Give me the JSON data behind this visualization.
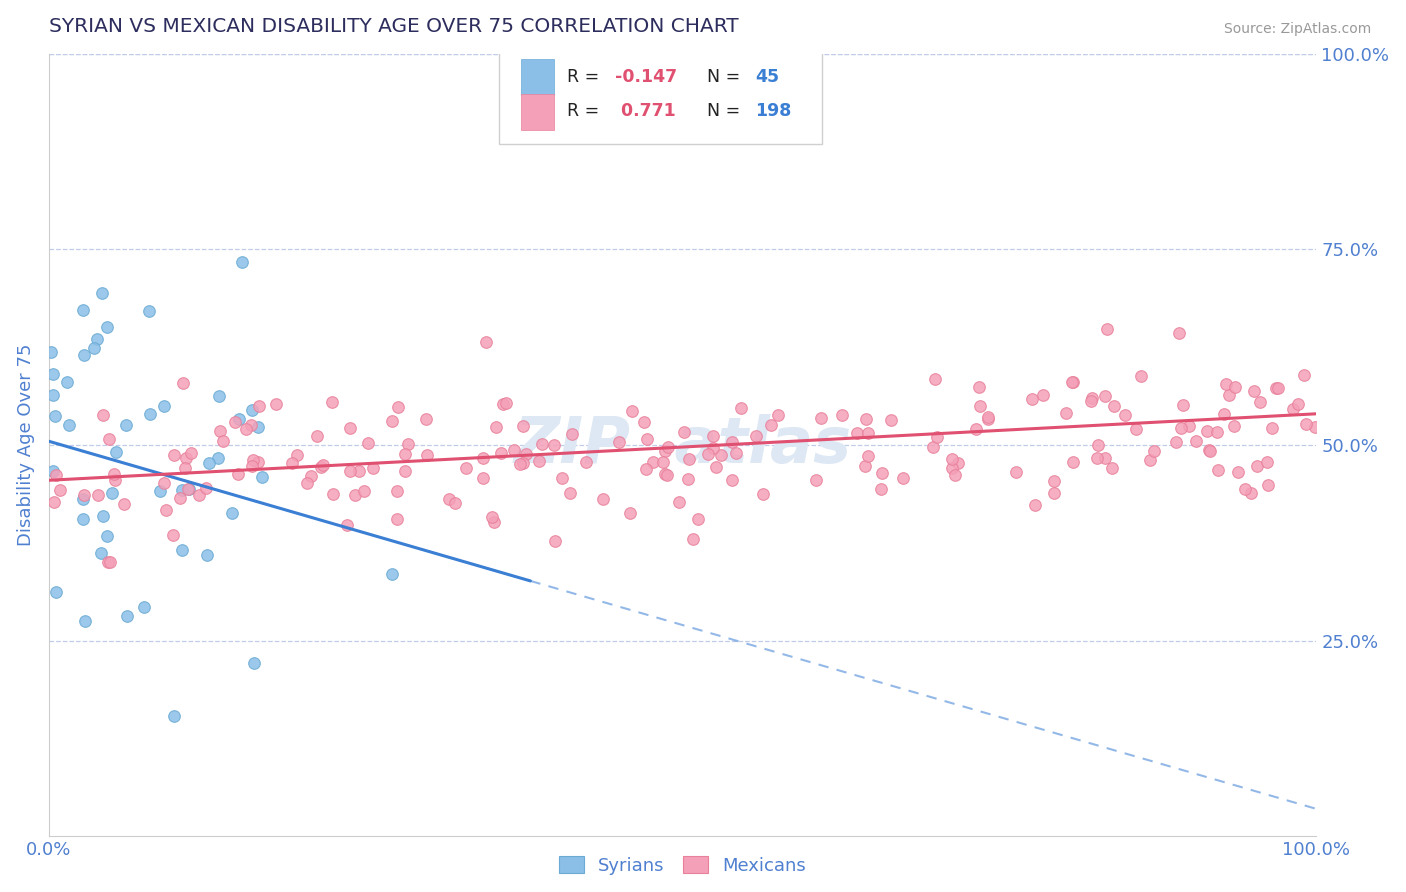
{
  "title": "SYRIAN VS MEXICAN DISABILITY AGE OVER 75 CORRELATION CHART",
  "source": "Source: ZipAtlas.com",
  "ylabel": "Disability Age Over 75",
  "syrian_color": "#8bbfe8",
  "syrian_edge_color": "#6aaad4",
  "mexican_color": "#f4a0b8",
  "mexican_edge_color": "#e8809a",
  "syrian_line_color": "#3a7fd4",
  "mexican_line_color": "#e05070",
  "title_color": "#2d2d5e",
  "axis_color": "#5080d0",
  "background_color": "#ffffff",
  "grid_color": "#c0cce8",
  "watermark_color": "#dde8f4",
  "legend_R_color": "#e05070",
  "legend_N_color": "#3a7fd4",
  "syrian_R": -0.147,
  "syrian_N": 45,
  "mexican_R": 0.771,
  "mexican_N": 198,
  "syrian_intercept": 0.505,
  "syrian_slope": -0.47,
  "mexican_intercept": 0.455,
  "mexican_slope": 0.085
}
